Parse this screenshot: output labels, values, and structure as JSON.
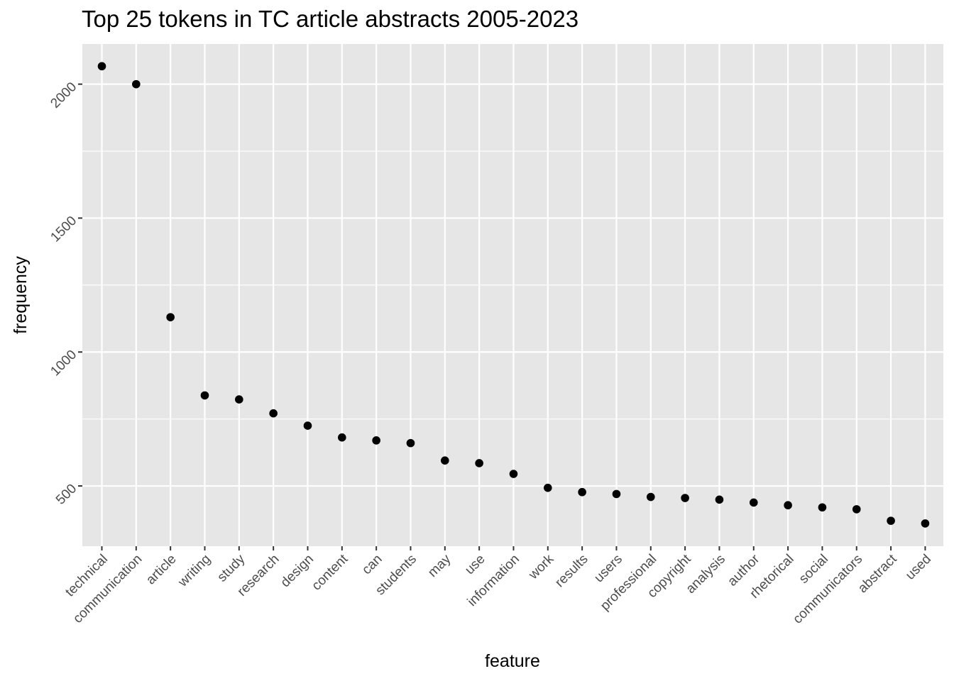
{
  "chart_data": {
    "type": "scatter",
    "title": "Top 25 tokens in TC article abstracts 2005-2023",
    "xlabel": "feature",
    "ylabel": "frequency",
    "categories": [
      "technical",
      "communication",
      "article",
      "writing",
      "study",
      "research",
      "design",
      "content",
      "can",
      "students",
      "may",
      "use",
      "information",
      "work",
      "results",
      "users",
      "professional",
      "copyright",
      "analysis",
      "author",
      "rhetorical",
      "social",
      "communicators",
      "abstract",
      "used"
    ],
    "values": [
      2067,
      2000,
      1130,
      838,
      823,
      771,
      725,
      681,
      670,
      660,
      595,
      585,
      545,
      493,
      477,
      470,
      459,
      455,
      449,
      438,
      428,
      420,
      413,
      370,
      360
    ],
    "yticks": [
      500,
      1000,
      1500,
      2000
    ],
    "ylim": [
      275,
      2150
    ],
    "grid": true,
    "background": "#e6e6e6",
    "grid_color": "#ffffff",
    "point_color": "#000000"
  }
}
